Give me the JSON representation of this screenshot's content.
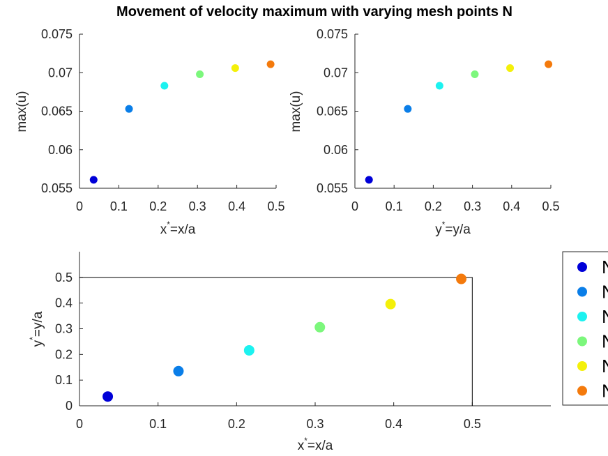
{
  "figure": {
    "title": "Movement of velocity maximum with varying mesh points N"
  },
  "legend": {
    "entries": [
      "N",
      "N",
      "N",
      "N",
      "N",
      "N"
    ],
    "placement": "right, beside bottom plot (clipped)"
  },
  "chart_data": [
    {
      "type": "scatter",
      "id": "top-left",
      "xlabel": "x*=x/a",
      "xlabel_parts": {
        "base": "x",
        "sup": "*",
        "rest": "=x/a"
      },
      "ylabel": "max(u)",
      "xlim": [
        0,
        0.5
      ],
      "ylim": [
        0.055,
        0.075
      ],
      "xticks": [
        0,
        0.1,
        0.2,
        0.3,
        0.4,
        0.5
      ],
      "xtick_labels": [
        "0",
        "0.1",
        "0.2",
        "0.3",
        "0.4",
        "0.5"
      ],
      "yticks": [
        0.055,
        0.06,
        0.065,
        0.07,
        0.075
      ],
      "ytick_labels": [
        "0.055",
        "0.06",
        "0.065",
        "0.07",
        "0.075"
      ],
      "grid": false,
      "points": [
        {
          "x": 0.036,
          "y": 0.0561,
          "color": "#0000d8"
        },
        {
          "x": 0.126,
          "y": 0.0653,
          "color": "#0a7ee8"
        },
        {
          "x": 0.216,
          "y": 0.0683,
          "color": "#1cf2f0"
        },
        {
          "x": 0.306,
          "y": 0.0698,
          "color": "#7cf77c"
        },
        {
          "x": 0.396,
          "y": 0.0706,
          "color": "#f4f00a"
        },
        {
          "x": 0.486,
          "y": 0.0711,
          "color": "#f47a0c"
        }
      ]
    },
    {
      "type": "scatter",
      "id": "top-right",
      "xlabel": "y*=y/a",
      "xlabel_parts": {
        "base": "y",
        "sup": "*",
        "rest": "=y/a"
      },
      "ylabel": "max(u)",
      "xlim": [
        0,
        0.5
      ],
      "ylim": [
        0.055,
        0.075
      ],
      "xticks": [
        0,
        0.1,
        0.2,
        0.3,
        0.4,
        0.5
      ],
      "xtick_labels": [
        "0",
        "0.1",
        "0.2",
        "0.3",
        "0.4",
        "0.5"
      ],
      "yticks": [
        0.055,
        0.06,
        0.065,
        0.07,
        0.075
      ],
      "ytick_labels": [
        "0.055",
        "0.06",
        "0.065",
        "0.07",
        "0.075"
      ],
      "grid": false,
      "points": [
        {
          "x": 0.036,
          "y": 0.0561,
          "color": "#0000d8"
        },
        {
          "x": 0.135,
          "y": 0.0653,
          "color": "#0a7ee8"
        },
        {
          "x": 0.216,
          "y": 0.0683,
          "color": "#1cf2f0"
        },
        {
          "x": 0.306,
          "y": 0.0698,
          "color": "#7cf77c"
        },
        {
          "x": 0.396,
          "y": 0.0706,
          "color": "#f4f00a"
        },
        {
          "x": 0.494,
          "y": 0.0711,
          "color": "#f47a0c"
        }
      ]
    },
    {
      "type": "scatter",
      "id": "bottom",
      "xlabel": "x*=x/a",
      "xlabel_parts": {
        "base": "x",
        "sup": "*",
        "rest": "=x/a"
      },
      "ylabel": "y*=y/a",
      "ylabel_parts": {
        "base": "y",
        "sup": "*",
        "rest": "=y/a"
      },
      "xlim": [
        0,
        0.6
      ],
      "ylim": [
        0,
        0.6
      ],
      "xticks": [
        0,
        0.1,
        0.2,
        0.3,
        0.4,
        0.5
      ],
      "xtick_labels": [
        "0",
        "0.1",
        "0.2",
        "0.3",
        "0.4",
        "0.5"
      ],
      "yticks": [
        0,
        0.1,
        0.2,
        0.3,
        0.4,
        0.5
      ],
      "ytick_labels": [
        "0",
        "0.1",
        "0.2",
        "0.3",
        "0.4",
        "0.5"
      ],
      "grid": false,
      "domain_box": {
        "x": [
          0,
          0.5
        ],
        "y": [
          0,
          0.5
        ]
      },
      "points": [
        {
          "x": 0.036,
          "y": 0.036,
          "color": "#0000d8"
        },
        {
          "x": 0.126,
          "y": 0.135,
          "color": "#0a7ee8"
        },
        {
          "x": 0.216,
          "y": 0.216,
          "color": "#1cf2f0"
        },
        {
          "x": 0.306,
          "y": 0.306,
          "color": "#7cf77c"
        },
        {
          "x": 0.396,
          "y": 0.396,
          "color": "#f4f00a"
        },
        {
          "x": 0.486,
          "y": 0.494,
          "color": "#f47a0c"
        }
      ]
    }
  ]
}
